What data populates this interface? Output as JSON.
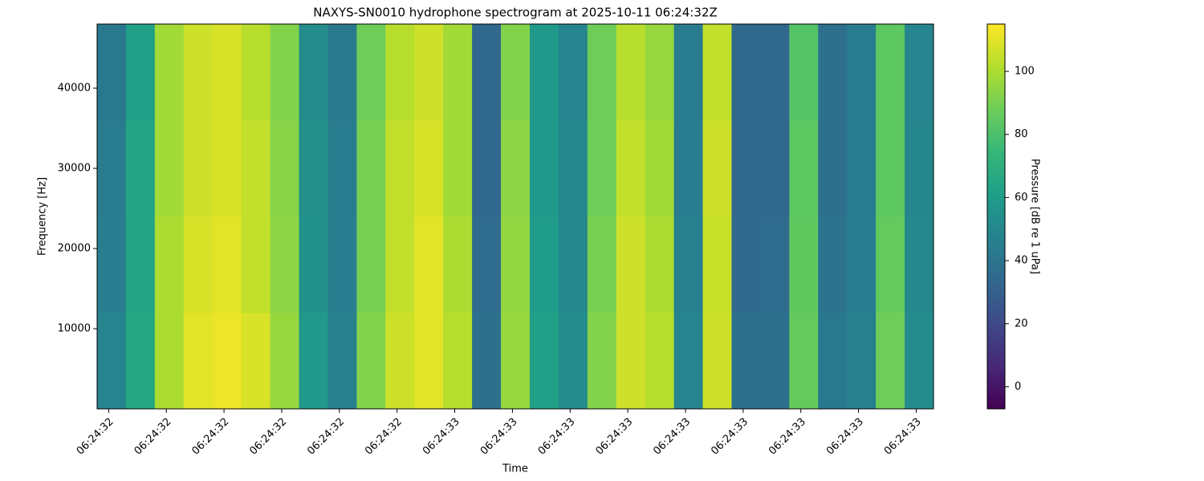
{
  "chart_data": {
    "type": "heatmap",
    "title": "NAXYS-SN0010 hydrophone spectrogram at 2025-10-11 06:24:32Z",
    "xlabel": "Time",
    "ylabel": "Frequency [Hz]",
    "colorbar_label": "Pressure [dB re 1 uPa]",
    "colormap": "viridis",
    "x": [
      32.28,
      32.33,
      32.38,
      32.43,
      32.48,
      32.53,
      32.58,
      32.63,
      32.68,
      32.73,
      32.78,
      32.83,
      32.88,
      32.93,
      32.98,
      33.03,
      33.08,
      33.13,
      33.18,
      33.23,
      33.28,
      33.33,
      33.38,
      33.43,
      33.48,
      33.53,
      33.58,
      33.63,
      33.68
    ],
    "x_step": 0.05,
    "y": [
      0,
      12000,
      24000,
      36000
    ],
    "y_step": 12000,
    "z": [
      [
        48,
        66,
        100,
        110,
        112,
        108,
        96,
        58,
        46,
        92,
        106,
        110,
        102,
        38,
        96,
        62,
        52,
        92,
        106,
        102,
        48,
        106,
        38,
        38,
        86,
        42,
        46,
        88,
        52
      ],
      [
        45,
        64,
        100,
        108,
        110,
        104,
        94,
        55,
        45,
        90,
        104,
        110,
        100,
        36,
        95,
        60,
        50,
        90,
        106,
        100,
        46,
        105,
        35,
        36,
        85,
        40,
        45,
        86,
        50
      ],
      [
        44,
        64,
        98,
        106,
        108,
        104,
        93,
        54,
        44,
        90,
        104,
        108,
        98,
        34,
        94,
        58,
        50,
        88,
        104,
        98,
        44,
        106,
        34,
        34,
        84,
        38,
        44,
        84,
        49
      ],
      [
        42,
        62,
        98,
        106,
        108,
        102,
        92,
        52,
        42,
        88,
        102,
        106,
        98,
        34,
        92,
        58,
        48,
        88,
        102,
        96,
        44,
        104,
        34,
        34,
        82,
        38,
        44,
        84,
        48
      ]
    ],
    "xlim": [
      32.28,
      33.73
    ],
    "xticks": [
      {
        "value": 32.3,
        "label": "06:24:32"
      },
      {
        "value": 32.4,
        "label": "06:24:32"
      },
      {
        "value": 32.5,
        "label": "06:24:32"
      },
      {
        "value": 32.6,
        "label": "06:24:32"
      },
      {
        "value": 32.7,
        "label": "06:24:32"
      },
      {
        "value": 32.8,
        "label": "06:24:32"
      },
      {
        "value": 32.9,
        "label": "06:24:33"
      },
      {
        "value": 33.0,
        "label": "06:24:33"
      },
      {
        "value": 33.1,
        "label": "06:24:33"
      },
      {
        "value": 33.2,
        "label": "06:24:33"
      },
      {
        "value": 33.3,
        "label": "06:24:33"
      },
      {
        "value": 33.4,
        "label": "06:24:33"
      },
      {
        "value": 33.5,
        "label": "06:24:33"
      },
      {
        "value": 33.6,
        "label": "06:24:33"
      },
      {
        "value": 33.7,
        "label": "06:24:33"
      }
    ],
    "ylim": [
      0,
      48000
    ],
    "yticks": [
      10000,
      20000,
      30000,
      40000
    ],
    "clim": [
      -7,
      115
    ],
    "cticks": [
      0,
      20,
      40,
      60,
      80,
      100
    ]
  }
}
